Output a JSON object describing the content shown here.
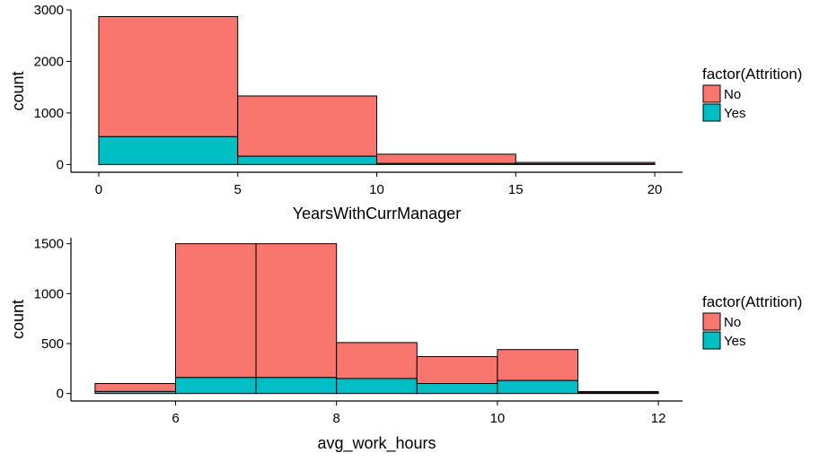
{
  "chart_data": [
    {
      "type": "bar",
      "xlabel": "YearsWithCurrManager",
      "ylabel": "count",
      "xlim": [
        -1,
        21
      ],
      "ylim": [
        -150,
        3000
      ],
      "xticks": [
        "0",
        "5",
        "10",
        "15",
        "20"
      ],
      "yticks": [
        "0",
        "1000",
        "2000",
        "3000"
      ],
      "bins": [
        [
          0,
          5
        ],
        [
          5,
          10
        ],
        [
          10,
          15
        ],
        [
          15,
          20
        ]
      ],
      "series": [
        {
          "name": "No",
          "values": [
            2330,
            1170,
            180,
            30
          ]
        },
        {
          "name": "Yes",
          "values": [
            540,
            160,
            20,
            10
          ]
        }
      ],
      "legend": {
        "title": "factor(Attrition)",
        "labels": [
          "No",
          "Yes"
        ],
        "placement": "right"
      },
      "colors": {
        "No": "#F8766D",
        "Yes": "#00BFC4"
      },
      "grid": false
    },
    {
      "type": "bar",
      "xlabel": "avg_work_hours",
      "ylabel": "count",
      "xlim": [
        4.7,
        12.3
      ],
      "ylim": [
        -75,
        1560
      ],
      "xticks": [
        "6",
        "8",
        "10",
        "12"
      ],
      "yticks": [
        "0",
        "500",
        "1000",
        "1500"
      ],
      "bins": [
        [
          5,
          6
        ],
        [
          6,
          7
        ],
        [
          7,
          8
        ],
        [
          8,
          9
        ],
        [
          9,
          10
        ],
        [
          10,
          11
        ],
        [
          11,
          12
        ]
      ],
      "series": [
        {
          "name": "No",
          "values": [
            80,
            1340,
            1340,
            360,
            270,
            310,
            12
          ]
        },
        {
          "name": "Yes",
          "values": [
            20,
            160,
            160,
            150,
            100,
            130,
            8
          ]
        }
      ],
      "legend": {
        "title": "factor(Attrition)",
        "labels": [
          "No",
          "Yes"
        ],
        "placement": "right"
      },
      "colors": {
        "No": "#F8766D",
        "Yes": "#00BFC4"
      },
      "grid": false
    }
  ]
}
